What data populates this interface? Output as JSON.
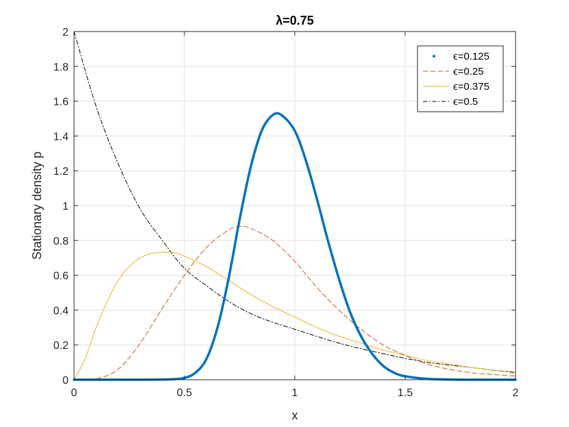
{
  "chart_data": {
    "type": "line",
    "title": "λ=0.75",
    "xlabel": "x",
    "ylabel": "Stationary density p",
    "xlim": [
      0,
      2
    ],
    "ylim": [
      0,
      2
    ],
    "xticks": [
      "0",
      "0.5",
      "1",
      "1.5",
      "2"
    ],
    "yticks": [
      "0",
      "0.2",
      "0.4",
      "0.6",
      "0.8",
      "1",
      "1.2",
      "1.4",
      "1.6",
      "1.8",
      "2"
    ],
    "grid": true,
    "legend_position": "top-right",
    "series": [
      {
        "name": "ϵ=0.125",
        "color": "#0072BD",
        "style": "solid-thick",
        "x": [
          0,
          0.3,
          0.4,
          0.45,
          0.5,
          0.55,
          0.6,
          0.65,
          0.7,
          0.75,
          0.8,
          0.85,
          0.9,
          0.94,
          1.0,
          1.05,
          1.1,
          1.15,
          1.2,
          1.25,
          1.3,
          1.35,
          1.4,
          1.45,
          1.5,
          1.6,
          1.7,
          1.8,
          2.0
        ],
        "y": [
          0,
          0.0,
          0.001,
          0.003,
          0.01,
          0.04,
          0.12,
          0.3,
          0.58,
          0.92,
          1.22,
          1.43,
          1.52,
          1.52,
          1.43,
          1.26,
          1.04,
          0.8,
          0.58,
          0.39,
          0.25,
          0.15,
          0.08,
          0.04,
          0.02,
          0.005,
          0.001,
          0.0,
          0.0
        ]
      },
      {
        "name": "ϵ=0.25",
        "color": "#D95319",
        "style": "dashed",
        "x": [
          0,
          0.1,
          0.2,
          0.3,
          0.4,
          0.5,
          0.6,
          0.7,
          0.75,
          0.8,
          0.9,
          1.0,
          1.1,
          1.2,
          1.3,
          1.4,
          1.5,
          1.6,
          1.7,
          1.8,
          1.9,
          2.0
        ],
        "y": [
          0,
          0.005,
          0.06,
          0.21,
          0.41,
          0.6,
          0.76,
          0.86,
          0.88,
          0.87,
          0.8,
          0.68,
          0.53,
          0.4,
          0.29,
          0.2,
          0.14,
          0.09,
          0.06,
          0.04,
          0.03,
          0.02
        ]
      },
      {
        "name": "ϵ=0.375",
        "color": "#EDB120",
        "style": "solid",
        "x": [
          0,
          0.05,
          0.1,
          0.15,
          0.2,
          0.25,
          0.3,
          0.35,
          0.4,
          0.45,
          0.5,
          0.6,
          0.7,
          0.8,
          0.9,
          1.0,
          1.1,
          1.2,
          1.3,
          1.4,
          1.5,
          1.6,
          1.7,
          1.8,
          1.9,
          2.0
        ],
        "y": [
          0,
          0.12,
          0.3,
          0.45,
          0.57,
          0.65,
          0.7,
          0.725,
          0.732,
          0.73,
          0.71,
          0.65,
          0.57,
          0.49,
          0.42,
          0.36,
          0.3,
          0.25,
          0.21,
          0.17,
          0.14,
          0.11,
          0.09,
          0.07,
          0.055,
          0.045
        ]
      },
      {
        "name": "ϵ=0.5",
        "color": "#000000",
        "style": "dash-dot",
        "x": [
          0,
          0.1,
          0.2,
          0.3,
          0.4,
          0.5,
          0.6,
          0.7,
          0.8,
          0.9,
          1.0,
          1.2,
          1.4,
          1.6,
          1.8,
          2.0
        ],
        "y": [
          2.0,
          1.57,
          1.24,
          0.98,
          0.8,
          0.64,
          0.54,
          0.45,
          0.38,
          0.33,
          0.29,
          0.21,
          0.15,
          0.1,
          0.07,
          0.04
        ]
      }
    ]
  }
}
